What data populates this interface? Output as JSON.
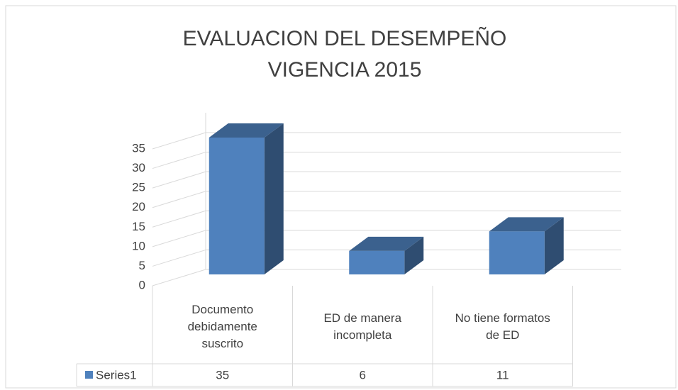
{
  "chart_data": {
    "type": "bar3d",
    "title": [
      "EVALUACION DEL DESEMPEÑO",
      "VIGENCIA 2015"
    ],
    "categories": [
      "Documento debidamente suscrito",
      "ED de manera incompleta",
      "No tiene formatos de ED"
    ],
    "series": [
      {
        "name": "Series1",
        "color": "#4f81bd",
        "values": [
          35,
          6,
          11
        ]
      }
    ],
    "ylim": [
      0,
      35
    ],
    "yticks": [
      0,
      5,
      10,
      15,
      20,
      25,
      30,
      35
    ],
    "grid": true,
    "data_table": true
  }
}
